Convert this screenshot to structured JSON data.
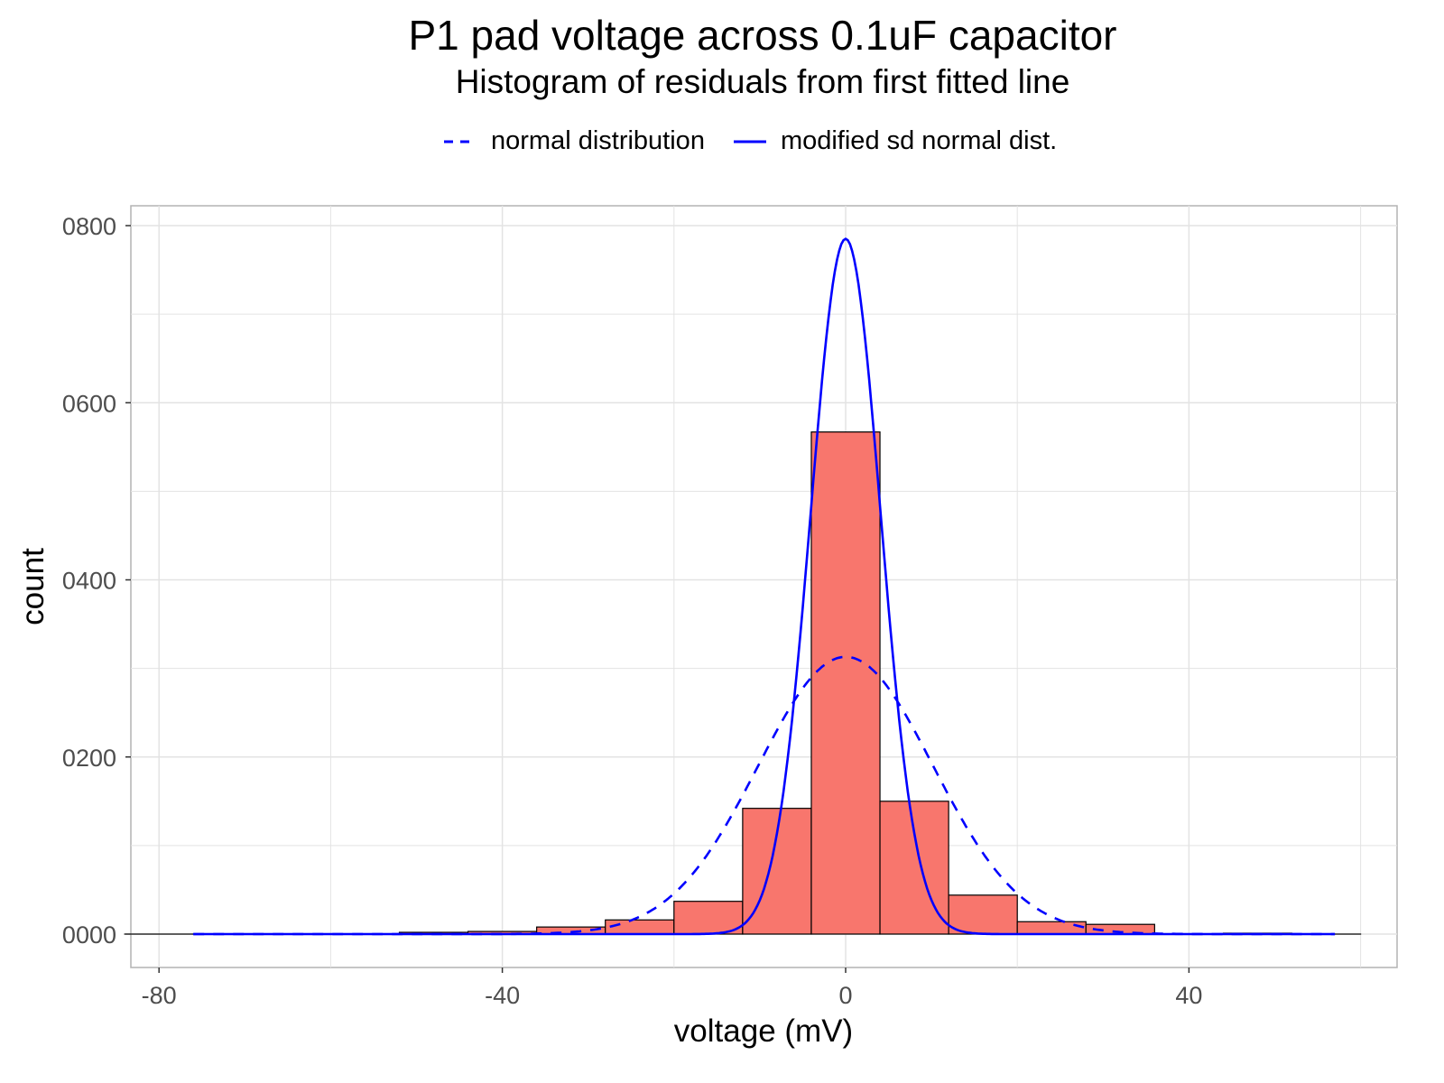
{
  "chart_data": {
    "type": "bar",
    "title": "P1 pad voltage across 0.1uF capacitor",
    "subtitle": "Histogram of residuals from first fitted line",
    "xlabel": "voltage (mV)",
    "ylabel": "count",
    "xlim": [
      -84,
      60
    ],
    "ylim": [
      0,
      800
    ],
    "x_ticks": [
      -80,
      -40,
      0,
      40
    ],
    "x_tick_labels": [
      "-80",
      "-40",
      "0",
      "40"
    ],
    "y_ticks": [
      0,
      200,
      400,
      600,
      800
    ],
    "y_tick_labels": [
      "0000",
      "0200",
      "0400",
      "0600",
      "0800"
    ],
    "grid": true,
    "legend_position": "top",
    "bin_width": 8,
    "bin_edges": [
      -84,
      -76,
      -68,
      -60,
      -52,
      -44,
      -36,
      -28,
      -20,
      -12,
      -4,
      4,
      12,
      20,
      28,
      36,
      44,
      52,
      60
    ],
    "counts": [
      0,
      0,
      0,
      0,
      2,
      3,
      8,
      16,
      37,
      142,
      567,
      150,
      44,
      14,
      11,
      0,
      1,
      0
    ],
    "bar_color": "#F8766D",
    "bar_outline": "#000000",
    "series": [
      {
        "name": "normal distribution",
        "kind": "normal-curve",
        "mean": 0,
        "sd": 10.2,
        "peak": 313,
        "style": "dashed",
        "color": "#0000FF",
        "x_range": [
          -76,
          57
        ]
      },
      {
        "name": "modified sd normal dist.",
        "kind": "normal-curve",
        "mean": 0,
        "sd": 4.07,
        "peak": 785,
        "style": "solid",
        "color": "#0000FF",
        "x_range": [
          -76,
          57
        ]
      }
    ]
  }
}
